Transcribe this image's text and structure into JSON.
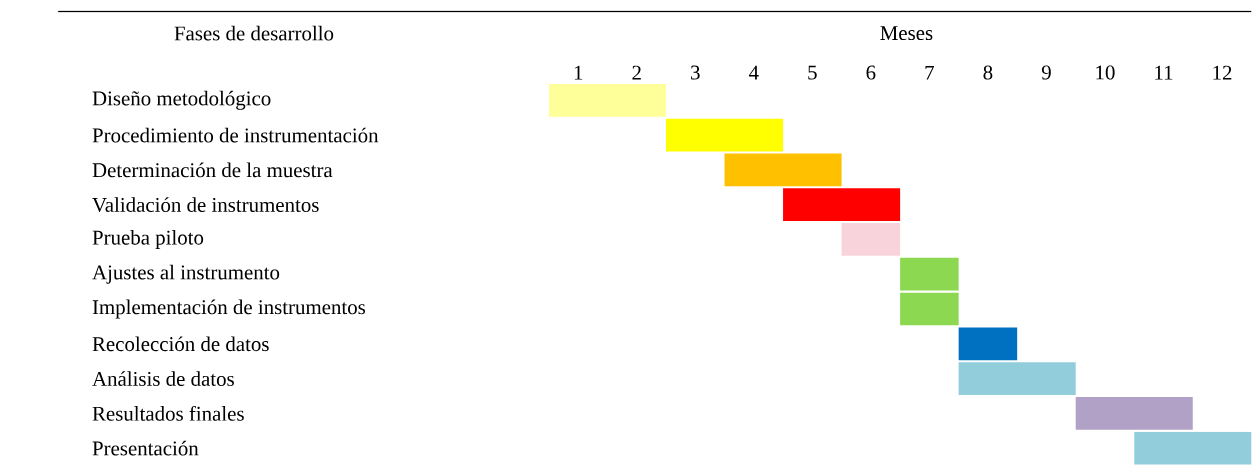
{
  "chart_data": {
    "type": "bar",
    "orientation": "horizontal",
    "xlabel": "Meses",
    "ylabel": "Fases de desarrollo",
    "categories": [
      "Diseño metodológico",
      "Procedimiento de instrumentación",
      "Determinación de la muestra",
      "Validación de instrumentos",
      "Prueba piloto",
      "Ajustes al instrumento",
      "Implementación de instrumentos",
      "Recolección de datos",
      "Análisis de datos",
      "Resultados finales",
      "Presentación"
    ],
    "base": [
      0,
      2,
      3,
      4,
      5,
      6,
      6,
      7,
      7,
      9,
      10
    ],
    "values": [
      2,
      2,
      2,
      2,
      1,
      1,
      1,
      1,
      2,
      2,
      2
    ],
    "colors": [
      "#ffff99",
      "#ffff00",
      "#ffc000",
      "#ff0000",
      "#f8d3dc",
      "#8cd850",
      "#8cd850",
      "#0070c0",
      "#92cddc",
      "#b2a1c7",
      "#92cddc"
    ],
    "xlim": [
      0,
      12
    ],
    "xticks": [
      {
        "value": 0.5,
        "label": "1"
      },
      {
        "value": 1.5,
        "label": "2"
      },
      {
        "value": 2.5,
        "label": "3"
      },
      {
        "value": 3.5,
        "label": "4"
      },
      {
        "value": 4.5,
        "label": "5"
      },
      {
        "value": 5.5,
        "label": "6"
      },
      {
        "value": 6.5,
        "label": "7"
      },
      {
        "value": 7.5,
        "label": "8"
      },
      {
        "value": 8.5,
        "label": "9"
      },
      {
        "value": 9.5,
        "label": "10"
      },
      {
        "value": 10.5,
        "label": "11"
      },
      {
        "value": 11.5,
        "label": "12"
      }
    ]
  }
}
